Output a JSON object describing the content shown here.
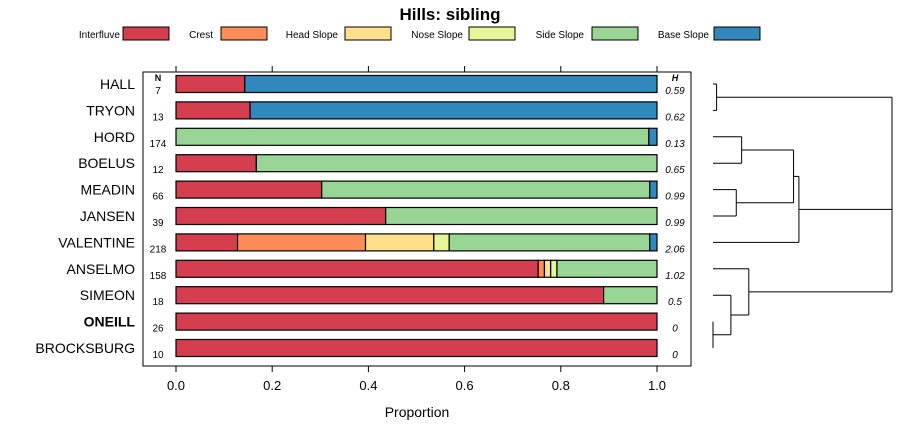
{
  "chart_data": {
    "type": "bar",
    "orientation": "horizontal-stacked",
    "title": "Hills: sibling",
    "xlabel": "Proportion",
    "xlim": [
      0,
      1
    ],
    "x_ticks": [
      "0.0",
      "0.2",
      "0.4",
      "0.6",
      "0.8",
      "1.0"
    ],
    "n_header": "N",
    "h_header": "H",
    "legend_position": "top",
    "series": [
      {
        "name": "Interfluve",
        "color": "#d53e4f"
      },
      {
        "name": "Crest",
        "color": "#fc8d59"
      },
      {
        "name": "Head Slope",
        "color": "#fee08b"
      },
      {
        "name": "Nose Slope",
        "color": "#e6f598"
      },
      {
        "name": "Side Slope",
        "color": "#99d594"
      },
      {
        "name": "Base Slope",
        "color": "#3288bd"
      }
    ],
    "categories": [
      {
        "label": "HALL",
        "n": "7",
        "h": "0.59",
        "bold": false,
        "values": [
          0.143,
          0,
          0,
          0,
          0,
          0.857
        ]
      },
      {
        "label": "TRYON",
        "n": "13",
        "h": "0.62",
        "bold": false,
        "values": [
          0.154,
          0,
          0,
          0,
          0,
          0.846
        ]
      },
      {
        "label": "HORD",
        "n": "174",
        "h": "0.13",
        "bold": false,
        "values": [
          0,
          0,
          0,
          0,
          0.983,
          0.017
        ]
      },
      {
        "label": "BOELUS",
        "n": "12",
        "h": "0.65",
        "bold": false,
        "values": [
          0.167,
          0,
          0,
          0,
          0.833,
          0
        ]
      },
      {
        "label": "MEADIN",
        "n": "66",
        "h": "0.99",
        "bold": false,
        "values": [
          0.303,
          0,
          0,
          0,
          0.682,
          0.015
        ]
      },
      {
        "label": "JANSEN",
        "n": "39",
        "h": "0.99",
        "bold": false,
        "values": [
          0.436,
          0,
          0,
          0,
          0.564,
          0
        ]
      },
      {
        "label": "VALENTINE",
        "n": "218",
        "h": "2.06",
        "bold": false,
        "values": [
          0.128,
          0.266,
          0.142,
          0.032,
          0.417,
          0.015
        ]
      },
      {
        "label": "ANSELMO",
        "n": "158",
        "h": "1.02",
        "bold": false,
        "values": [
          0.753,
          0.013,
          0.013,
          0.013,
          0.208,
          0
        ]
      },
      {
        "label": "SIMEON",
        "n": "18",
        "h": "0.5",
        "bold": false,
        "values": [
          0.889,
          0,
          0,
          0,
          0.111,
          0
        ]
      },
      {
        "label": "ONEILL",
        "n": "26",
        "h": "0",
        "bold": true,
        "values": [
          1,
          0,
          0,
          0,
          0,
          0
        ]
      },
      {
        "label": "BROCKSBURG",
        "n": "10",
        "h": "0",
        "bold": false,
        "values": [
          1,
          0,
          0,
          0,
          0,
          0
        ]
      }
    ],
    "dendrogram": {
      "leaf_order": [
        "HALL",
        "TRYON",
        "HORD",
        "BOELUS",
        "MEADIN",
        "JANSEN",
        "VALENTINE",
        "ANSELMO",
        "SIMEON",
        "ONEILL",
        "BROCKSBURG"
      ],
      "merges": [
        {
          "left": "HALL",
          "right": "TRYON",
          "height": 0.02
        },
        {
          "left": "HORD",
          "right": "BOELUS",
          "height": 0.16
        },
        {
          "left": "MEADIN",
          "right": "JANSEN",
          "height": 0.13
        },
        {
          "left": "ONEILL",
          "right": "BROCKSBURG",
          "height": 0.0
        },
        {
          "left": "SIMEON",
          "right": "ONEILL+BROCKSBURG",
          "height": 0.1
        },
        {
          "left": "ANSELMO",
          "right": "SIMEON+ONEILL+BROCKSBURG",
          "height": 0.2
        },
        {
          "left": "HORD+BOELUS",
          "right": "MEADIN+JANSEN",
          "height": 0.45
        },
        {
          "left": "HORD+BOELUS+MEADIN+JANSEN",
          "right": "VALENTINE",
          "height": 0.48
        },
        {
          "left": "HALL+TRYON",
          "right": "HORD+BOELUS+MEADIN+JANSEN+VALENTINE",
          "height": 1.0
        },
        {
          "left": "HALL+TRYON+HORD+BOELUS+MEADIN+JANSEN+VALENTINE",
          "right": "ANSELMO+SIMEON+ONEILL+BROCKSBURG",
          "height": 1.0
        }
      ]
    }
  }
}
